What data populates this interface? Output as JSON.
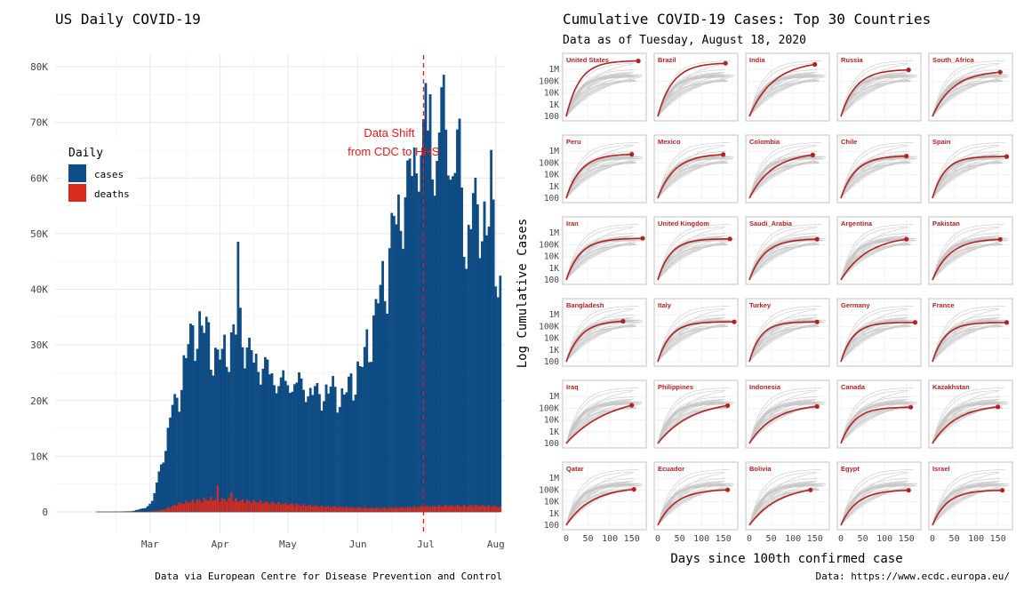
{
  "left": {
    "title": "US Daily COVID-19",
    "caption": "Data via European Centre for Disease Prevention and Control",
    "annotation": [
      "Data Shift",
      "from CDC to HHS"
    ],
    "legend": {
      "title": "Daily",
      "items": [
        {
          "label": "cases",
          "color": "#0d4f8b"
        },
        {
          "label": "deaths",
          "color": "#d92b1f"
        }
      ]
    }
  },
  "right": {
    "title": "Cumulative COVID-19 Cases: Top 30 Countries",
    "subtitle": "Data as of Tuesday, August 18, 2020",
    "xlabel": "Days since 100th confirmed case",
    "ylabel": "Log Cumulative Cases",
    "caption": "Data: https://www.ecdc.europa.eu/"
  },
  "colors": {
    "cases": "#0d4f8b",
    "deaths": "#d92b1f",
    "highlight": "#b22222",
    "grey": "#c8c8c8",
    "vline": "#e41a1c"
  },
  "chart_data": [
    {
      "type": "bar",
      "title": "US Daily COVID-19",
      "x": {
        "start": "2020-02-21",
        "end": "2020-08-18",
        "tick_labels": [
          "Mar",
          "Apr",
          "May",
          "Jun",
          "Jul",
          "Aug"
        ]
      },
      "ylim": [
        0,
        80000
      ],
      "y_tick_labels": [
        "0",
        "10K",
        "20K",
        "30K",
        "40K",
        "50K",
        "60K",
        "70K",
        "80K"
      ],
      "vline_date": "2020-07-15",
      "legend_position": "top-left",
      "series": [
        {
          "name": "cases",
          "anchors": [
            [
              "2020-02-21",
              0
            ],
            [
              "2020-03-01",
              10
            ],
            [
              "2020-03-08",
              100
            ],
            [
              "2020-03-14",
              700
            ],
            [
              "2020-03-17",
              2000
            ],
            [
              "2020-03-19",
              5000
            ],
            [
              "2020-03-21",
              9000
            ],
            [
              "2020-03-23",
              12000
            ],
            [
              "2020-03-25",
              18000
            ],
            [
              "2020-03-27",
              20000
            ],
            [
              "2020-03-29",
              22000
            ],
            [
              "2020-03-31",
              27000
            ],
            [
              "2020-04-02",
              31000
            ],
            [
              "2020-04-04",
              33000
            ],
            [
              "2020-04-06",
              34000
            ],
            [
              "2020-04-10",
              34000
            ],
            [
              "2020-04-14",
              28000
            ],
            [
              "2020-04-18",
              30000
            ],
            [
              "2020-04-22",
              32000
            ],
            [
              "2020-04-25",
              35000
            ],
            [
              "2020-04-28",
              30000
            ],
            [
              "2020-05-02",
              28000
            ],
            [
              "2020-05-05",
              27000
            ],
            [
              "2020-05-08",
              26000
            ],
            [
              "2020-05-12",
              24000
            ],
            [
              "2020-05-16",
              24000
            ],
            [
              "2020-05-20",
              24000
            ],
            [
              "2020-05-24",
              23000
            ],
            [
              "2020-05-28",
              22000
            ],
            [
              "2020-06-01",
              22000
            ],
            [
              "2020-06-05",
              23000
            ],
            [
              "2020-06-09",
              21000
            ],
            [
              "2020-06-13",
              24000
            ],
            [
              "2020-06-17",
              26000
            ],
            [
              "2020-06-20",
              31000
            ],
            [
              "2020-06-23",
              34000
            ],
            [
              "2020-06-26",
              42000
            ],
            [
              "2020-06-29",
              44000
            ],
            [
              "2020-07-02",
              54000
            ],
            [
              "2020-07-05",
              56000
            ],
            [
              "2020-07-08",
              60000
            ],
            [
              "2020-07-11",
              66000
            ],
            [
              "2020-07-14",
              68000
            ],
            [
              "2020-07-17",
              71000
            ],
            [
              "2020-07-20",
              64000
            ],
            [
              "2020-07-23",
              72000
            ],
            [
              "2020-07-25",
              73000
            ],
            [
              "2020-07-28",
              62000
            ],
            [
              "2020-07-31",
              68000
            ],
            [
              "2020-08-03",
              48000
            ],
            [
              "2020-08-06",
              57000
            ],
            [
              "2020-08-09",
              56000
            ],
            [
              "2020-08-12",
              52000
            ],
            [
              "2020-08-15",
              55000
            ],
            [
              "2020-08-18",
              40000
            ]
          ],
          "peaks": [
            [
              "2020-04-24",
              48500
            ],
            [
              "2020-07-16",
              77000
            ],
            [
              "2020-07-24",
              78500
            ],
            [
              "2020-07-18",
              75000
            ],
            [
              "2020-08-14",
              65000
            ]
          ]
        },
        {
          "name": "deaths",
          "anchors": [
            [
              "2020-02-21",
              0
            ],
            [
              "2020-03-15",
              50
            ],
            [
              "2020-03-22",
              400
            ],
            [
              "2020-03-29",
              1500
            ],
            [
              "2020-04-05",
              2000
            ],
            [
              "2020-04-12",
              2300
            ],
            [
              "2020-04-19",
              2200
            ],
            [
              "2020-04-26",
              2000
            ],
            [
              "2020-05-03",
              1800
            ],
            [
              "2020-05-10",
              1600
            ],
            [
              "2020-05-17",
              1400
            ],
            [
              "2020-05-24",
              1200
            ],
            [
              "2020-05-31",
              1000
            ],
            [
              "2020-06-07",
              900
            ],
            [
              "2020-06-14",
              800
            ],
            [
              "2020-06-21",
              700
            ],
            [
              "2020-06-28",
              700
            ],
            [
              "2020-07-05",
              800
            ],
            [
              "2020-07-12",
              900
            ],
            [
              "2020-07-19",
              1000
            ],
            [
              "2020-07-26",
              1100
            ],
            [
              "2020-08-02",
              1100
            ],
            [
              "2020-08-09",
              1100
            ],
            [
              "2020-08-16",
              1000
            ],
            [
              "2020-08-18",
              900
            ]
          ],
          "peaks": [
            [
              "2020-04-15",
              4800
            ],
            [
              "2020-04-21",
              3500
            ]
          ]
        }
      ]
    },
    {
      "type": "line",
      "title": "Cumulative COVID-19 Cases: Top 30 Countries",
      "scale": "log10",
      "xlim": [
        0,
        175
      ],
      "x_ticks": [
        0,
        50,
        100,
        150
      ],
      "ylim": [
        100,
        5000000
      ],
      "y_tick_labels": [
        "100",
        "1K",
        "10K",
        "100K",
        "1M"
      ],
      "panels": [
        {
          "name": "United States",
          "days": 165,
          "final": 5400000,
          "knee": 0.3
        },
        {
          "name": "Brazil",
          "days": 155,
          "final": 3400000,
          "knee": 0.45
        },
        {
          "name": "India",
          "days": 150,
          "final": 2700000,
          "knee": 0.75
        },
        {
          "name": "Russia",
          "days": 155,
          "final": 930000,
          "knee": 0.45
        },
        {
          "name": "South_Africa",
          "days": 155,
          "final": 590000,
          "knee": 0.65
        },
        {
          "name": "Peru",
          "days": 150,
          "final": 550000,
          "knee": 0.45
        },
        {
          "name": "Mexico",
          "days": 150,
          "final": 525000,
          "knee": 0.55
        },
        {
          "name": "Colombia",
          "days": 145,
          "final": 480000,
          "knee": 0.75
        },
        {
          "name": "Chile",
          "days": 150,
          "final": 385000,
          "knee": 0.45
        },
        {
          "name": "Spain",
          "days": 170,
          "final": 360000,
          "knee": 0.18
        },
        {
          "name": "Iran",
          "days": 175,
          "final": 350000,
          "knee": 0.3
        },
        {
          "name": "United Kingdom",
          "days": 165,
          "final": 320000,
          "knee": 0.25
        },
        {
          "name": "Saudi_Arabia",
          "days": 155,
          "final": 300000,
          "knee": 0.45
        },
        {
          "name": "Argentina",
          "days": 150,
          "final": 300000,
          "knee": 0.8
        },
        {
          "name": "Pakistan",
          "days": 155,
          "final": 290000,
          "knee": 0.55
        },
        {
          "name": "Bangladesh",
          "days": 130,
          "final": 280000,
          "knee": 0.55
        },
        {
          "name": "Italy",
          "days": 175,
          "final": 255000,
          "knee": 0.18
        },
        {
          "name": "Turkey",
          "days": 155,
          "final": 250000,
          "knee": 0.2
        },
        {
          "name": "Germany",
          "days": 170,
          "final": 225000,
          "knee": 0.18
        },
        {
          "name": "France",
          "days": 170,
          "final": 220000,
          "knee": 0.2
        },
        {
          "name": "Iraq",
          "days": 150,
          "final": 180000,
          "knee": 0.95
        },
        {
          "name": "Philippines",
          "days": 160,
          "final": 170000,
          "knee": 0.85
        },
        {
          "name": "Indonesia",
          "days": 155,
          "final": 145000,
          "knee": 0.75
        },
        {
          "name": "Canada",
          "days": 160,
          "final": 123000,
          "knee": 0.35
        },
        {
          "name": "Kazakhstan",
          "days": 150,
          "final": 133000,
          "knee": 0.75
        },
        {
          "name": "Qatar",
          "days": 155,
          "final": 115000,
          "knee": 0.75
        },
        {
          "name": "Ecuador",
          "days": 160,
          "final": 104000,
          "knee": 0.55
        },
        {
          "name": "Bolivia",
          "days": 140,
          "final": 102000,
          "knee": 0.85
        },
        {
          "name": "Egypt",
          "days": 155,
          "final": 96000,
          "knee": 0.5
        },
        {
          "name": "Israel",
          "days": 160,
          "final": 95000,
          "knee": 0.4
        }
      ]
    }
  ]
}
